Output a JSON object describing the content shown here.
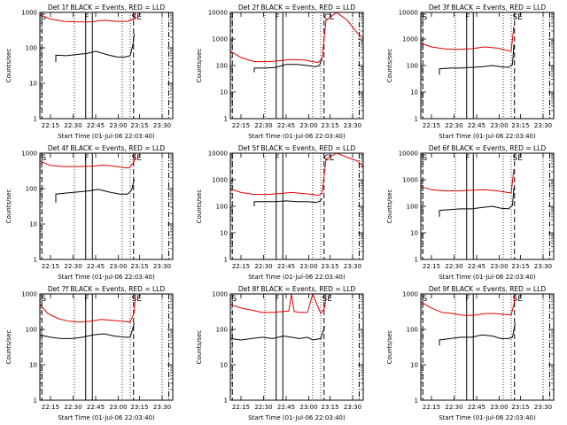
{
  "chart_data": [
    {
      "type": "line",
      "title": "Det 1f BLACK = Events, RED = LLD",
      "ylabel": "Counts/sec",
      "xlabel": "Start Time (01-Jul-06 22:03:40)",
      "xticks": [
        "22:15",
        "22:30",
        "22:45",
        "23:00",
        "23:15",
        "23:30"
      ],
      "yticks": [
        "1",
        "10",
        "100",
        "1000"
      ],
      "ylim": [
        1,
        1000
      ],
      "yscale": "log",
      "markers": [
        "S",
        "F",
        "SE"
      ],
      "series": [
        {
          "name": "LLD",
          "color": "#e00000",
          "x": [
            0.0,
            0.08,
            0.18,
            0.28,
            0.38,
            0.48,
            0.58,
            0.66,
            0.68,
            0.71,
            0.72
          ],
          "y": [
            850,
            650,
            560,
            540,
            540,
            600,
            560,
            560,
            600,
            650,
            1000
          ]
        },
        {
          "name": "Events",
          "color": "#000000",
          "x": [
            0.12,
            0.12,
            0.2,
            0.28,
            0.36,
            0.42,
            0.5,
            0.58,
            0.64,
            0.68,
            0.7,
            0.71
          ],
          "y": [
            40,
            62,
            60,
            65,
            70,
            80,
            65,
            55,
            55,
            60,
            120,
            250
          ]
        }
      ]
    },
    {
      "type": "line",
      "title": "Det 2f BLACK = Events, RED = LLD",
      "ylabel": "Counts/sec",
      "xlabel": "Start Time (01-Jul-06 22:03:40)",
      "xticks": [
        "22:15",
        "22:30",
        "22:45",
        "23:00",
        "23:15",
        "23:30"
      ],
      "yticks": [
        "1",
        "10",
        "100",
        "1000",
        "10000"
      ],
      "ylim": [
        1,
        10000
      ],
      "yscale": "log",
      "markers": [
        "F",
        "CL"
      ],
      "series": [
        {
          "name": "LLD",
          "color": "#e00000",
          "x": [
            0.0,
            0.08,
            0.18,
            0.28,
            0.36,
            0.46,
            0.56,
            0.62,
            0.66,
            0.69,
            0.72,
            0.8,
            0.88,
            0.96,
            1.0
          ],
          "y": [
            350,
            200,
            140,
            140,
            150,
            170,
            160,
            140,
            130,
            180,
            5000,
            12000,
            5000,
            1600,
            1100
          ]
        },
        {
          "name": "Events",
          "color": "#000000",
          "x": [
            0.18,
            0.18,
            0.26,
            0.34,
            0.42,
            0.5,
            0.58,
            0.64,
            0.67,
            0.69
          ],
          "y": [
            55,
            80,
            80,
            85,
            110,
            110,
            100,
            90,
            100,
            180
          ]
        }
      ]
    },
    {
      "type": "line",
      "title": "Det 3f BLACK = Events, RED = LLD",
      "ylabel": "Counts/sec",
      "xlabel": "Start Time (01-Jul-06 22:03:40)",
      "xticks": [
        "22:15",
        "22:30",
        "22:45",
        "23:00",
        "23:15",
        "23:30"
      ],
      "yticks": [
        "1",
        "10",
        "100",
        "1000",
        "10000"
      ],
      "ylim": [
        1,
        10000
      ],
      "yscale": "log",
      "markers": [
        "S",
        "F",
        "SE"
      ],
      "series": [
        {
          "name": "LLD",
          "color": "#e00000",
          "x": [
            0.0,
            0.08,
            0.18,
            0.28,
            0.38,
            0.48,
            0.58,
            0.64,
            0.68,
            0.7
          ],
          "y": [
            700,
            500,
            420,
            400,
            430,
            500,
            450,
            380,
            350,
            3000
          ]
        },
        {
          "name": "Events",
          "color": "#000000",
          "x": [
            0.14,
            0.14,
            0.22,
            0.3,
            0.38,
            0.46,
            0.54,
            0.6,
            0.66,
            0.69,
            0.7
          ],
          "y": [
            45,
            75,
            80,
            80,
            85,
            90,
            100,
            90,
            85,
            110,
            600
          ]
        }
      ]
    },
    {
      "type": "line",
      "title": "Det 4f BLACK = Events, RED = LLD",
      "ylabel": "Counts/sec",
      "xlabel": "Start Time (01-Jul-06 22:03:40)",
      "xticks": [
        "22:15",
        "22:30",
        "22:45",
        "23:00",
        "23:15",
        "23:30"
      ],
      "yticks": [
        "1",
        "10",
        "100",
        "1000"
      ],
      "ylim": [
        1,
        1000
      ],
      "yscale": "log",
      "markers": [
        "S",
        "F",
        "SE"
      ],
      "series": [
        {
          "name": "LLD",
          "color": "#e00000",
          "x": [
            0.0,
            0.08,
            0.18,
            0.28,
            0.38,
            0.48,
            0.58,
            0.66,
            0.68,
            0.71,
            0.72
          ],
          "y": [
            600,
            450,
            420,
            420,
            430,
            460,
            420,
            380,
            400,
            600,
            1000
          ]
        },
        {
          "name": "Events",
          "color": "#000000",
          "x": [
            0.12,
            0.12,
            0.2,
            0.28,
            0.36,
            0.44,
            0.52,
            0.6,
            0.66,
            0.69,
            0.71
          ],
          "y": [
            40,
            70,
            75,
            80,
            85,
            95,
            80,
            70,
            70,
            90,
            180
          ]
        }
      ]
    },
    {
      "type": "line",
      "title": "Det 5f BLACK = Events, RED = LLD",
      "ylabel": "Counts/sec",
      "xlabel": "Start Time (01-Jul-06 22:03:40)",
      "xticks": [
        "22:15",
        "22:30",
        "22:45",
        "23:00",
        "23:15",
        "23:30"
      ],
      "yticks": [
        "1",
        "10",
        "100",
        "1000",
        "10000"
      ],
      "ylim": [
        1,
        10000
      ],
      "yscale": "log",
      "markers": [
        "F",
        "CL"
      ],
      "series": [
        {
          "name": "LLD",
          "color": "#e00000",
          "x": [
            0.0,
            0.08,
            0.18,
            0.28,
            0.36,
            0.46,
            0.56,
            0.62,
            0.66,
            0.69,
            0.72,
            0.8,
            0.88,
            0.96,
            1.0
          ],
          "y": [
            450,
            330,
            280,
            280,
            300,
            330,
            300,
            280,
            260,
            300,
            6000,
            10000,
            7000,
            5000,
            3000
          ]
        },
        {
          "name": "Events",
          "color": "#000000",
          "x": [
            0.18,
            0.18,
            0.26,
            0.34,
            0.42,
            0.5,
            0.58,
            0.64,
            0.67,
            0.69
          ],
          "y": [
            100,
            150,
            150,
            150,
            160,
            150,
            150,
            140,
            150,
            200
          ]
        }
      ]
    },
    {
      "type": "line",
      "title": "Det 6f BLACK = Events, RED = LLD",
      "ylabel": "Counts/sec",
      "xlabel": "Start Time (01-Jul-06 22:03:40)",
      "xticks": [
        "22:15",
        "22:30",
        "22:45",
        "23:00",
        "23:15",
        "23:30"
      ],
      "yticks": [
        "1",
        "10",
        "100",
        "1000",
        "10000"
      ],
      "ylim": [
        1,
        10000
      ],
      "yscale": "log",
      "markers": [
        "S",
        "F",
        "SE"
      ],
      "series": [
        {
          "name": "LLD",
          "color": "#e00000",
          "x": [
            0.0,
            0.08,
            0.18,
            0.28,
            0.38,
            0.48,
            0.58,
            0.64,
            0.68,
            0.7
          ],
          "y": [
            550,
            420,
            380,
            380,
            400,
            420,
            380,
            340,
            320,
            2500
          ]
        },
        {
          "name": "Events",
          "color": "#000000",
          "x": [
            0.14,
            0.14,
            0.22,
            0.3,
            0.38,
            0.46,
            0.54,
            0.6,
            0.66,
            0.69,
            0.7
          ],
          "y": [
            40,
            70,
            75,
            80,
            80,
            90,
            100,
            85,
            80,
            110,
            500
          ]
        }
      ]
    },
    {
      "type": "line",
      "title": "Det 7f BLACK = Events, RED = LLD",
      "ylabel": "Counts/sec",
      "xlabel": "Start Time (01-Jul-06 22:03:40)",
      "xticks": [
        "22:15",
        "22:30",
        "22:45",
        "23:00",
        "23:15",
        "23:30"
      ],
      "yticks": [
        "1",
        "10",
        "100",
        "1000"
      ],
      "ylim": [
        1,
        1000
      ],
      "yscale": "log",
      "markers": [
        "S",
        "F",
        "SE"
      ],
      "series": [
        {
          "name": "LLD",
          "color": "#e00000",
          "x": [
            0.0,
            0.06,
            0.14,
            0.22,
            0.3,
            0.38,
            0.46,
            0.54,
            0.62,
            0.68,
            0.71,
            0.72
          ],
          "y": [
            500,
            280,
            200,
            170,
            160,
            170,
            190,
            180,
            170,
            160,
            300,
            1000
          ]
        },
        {
          "name": "Events",
          "color": "#000000",
          "x": [
            0.0,
            0.08,
            0.16,
            0.24,
            0.32,
            0.4,
            0.48,
            0.56,
            0.64,
            0.68,
            0.71
          ],
          "y": [
            70,
            60,
            55,
            55,
            60,
            70,
            75,
            65,
            60,
            60,
            150
          ]
        }
      ]
    },
    {
      "type": "line",
      "title": "Det 8f BLACK = Events, RED = LLD",
      "ylabel": "Counts/sec",
      "xlabel": "Start Time (01-Jul-06 22:03:40)",
      "xticks": [
        "22:15",
        "22:30",
        "22:45",
        "23:00",
        "23:15",
        "23:30"
      ],
      "yticks": [
        "1",
        "10",
        "100",
        "1000"
      ],
      "ylim": [
        1,
        1000
      ],
      "yscale": "log",
      "markers": [
        "S",
        "F",
        "SE"
      ],
      "series": [
        {
          "name": "LLD",
          "color": "#e00000",
          "x": [
            0.0,
            0.08,
            0.16,
            0.24,
            0.32,
            0.4,
            0.44,
            0.46,
            0.48,
            0.52,
            0.58,
            0.62,
            0.68,
            0.71,
            0.72
          ],
          "y": [
            500,
            400,
            350,
            300,
            300,
            320,
            330,
            1000,
            320,
            300,
            300,
            1000,
            280,
            400,
            1000
          ]
        },
        {
          "name": "Events",
          "color": "#000000",
          "x": [
            0.0,
            0.08,
            0.16,
            0.24,
            0.32,
            0.4,
            0.46,
            0.52,
            0.58,
            0.62,
            0.68,
            0.71
          ],
          "y": [
            55,
            50,
            55,
            60,
            55,
            65,
            60,
            55,
            60,
            50,
            55,
            120
          ]
        }
      ]
    },
    {
      "type": "line",
      "title": "Det 9f BLACK = Events, RED = LLD",
      "ylabel": "Counts/sec",
      "xlabel": "Start Time (01-Jul-06 22:03:40)",
      "xticks": [
        "22:15",
        "22:30",
        "22:45",
        "23:00",
        "23:15",
        "23:30"
      ],
      "yticks": [
        "1",
        "10",
        "100",
        "1000"
      ],
      "ylim": [
        1,
        1000
      ],
      "yscale": "log",
      "markers": [
        "S",
        "F",
        "SE"
      ],
      "series": [
        {
          "name": "LLD",
          "color": "#e00000",
          "x": [
            0.0,
            0.08,
            0.16,
            0.24,
            0.32,
            0.4,
            0.48,
            0.56,
            0.64,
            0.68,
            0.7,
            0.71
          ],
          "y": [
            600,
            400,
            300,
            280,
            250,
            250,
            280,
            280,
            260,
            260,
            500,
            1000
          ]
        },
        {
          "name": "Events",
          "color": "#000000",
          "x": [
            0.14,
            0.14,
            0.22,
            0.3,
            0.38,
            0.46,
            0.54,
            0.6,
            0.66,
            0.69,
            0.71
          ],
          "y": [
            35,
            50,
            55,
            60,
            60,
            70,
            65,
            55,
            55,
            60,
            150
          ]
        }
      ]
    }
  ]
}
